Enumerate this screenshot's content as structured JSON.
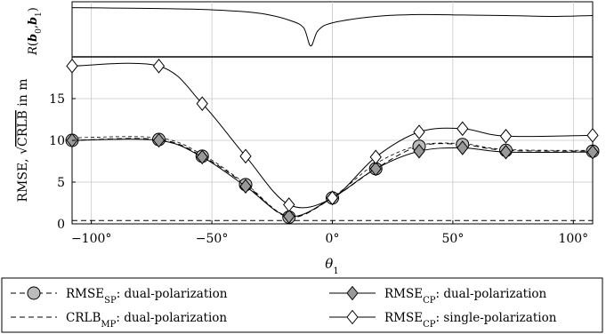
{
  "chart_data": [
    {
      "type": "line",
      "ylabel_math": "R(b0,b1)",
      "ylabel_parts": {
        "R": "R",
        "b0": "b",
        "sub0": "0",
        "b1": "b",
        "sub1": "1"
      },
      "xlim": [
        -108,
        108
      ],
      "ylim": [
        0,
        1
      ],
      "grid": true,
      "series": [
        {
          "x": [
            -108,
            -90,
            -72,
            -54,
            -36,
            -27,
            -18,
            -12,
            -9,
            -6,
            0,
            18,
            36,
            54,
            72,
            90,
            108
          ],
          "y": [
            0.95,
            0.94,
            0.93,
            0.91,
            0.86,
            0.8,
            0.68,
            0.52,
            0.12,
            0.45,
            0.62,
            0.76,
            0.8,
            0.79,
            0.78,
            0.76,
            0.78
          ],
          "color": "#000000"
        }
      ]
    },
    {
      "type": "line",
      "xlabel": "θ",
      "xlabel_sub": "1",
      "ylabel_left": "RMSE, ",
      "ylabel_sqrt": "√",
      "ylabel_crlb": "CRLB",
      "ylabel_right": " in m",
      "xlim": [
        -108,
        108
      ],
      "ylim": [
        0,
        20
      ],
      "xticks": [
        -100,
        -50,
        0,
        50,
        100
      ],
      "xtick_labels": [
        "−100°",
        "−50°",
        "0°",
        "50°",
        "100°"
      ],
      "yticks": [
        0,
        5,
        10,
        15
      ],
      "ytick_labels": [
        "0",
        "5",
        "10",
        "15"
      ],
      "grid": true,
      "legend_position": "bottom",
      "series": [
        {
          "name": "RMSE",
          "name_sub": "SP",
          "name_suffix": ": dual-polarization",
          "marker": "circle",
          "line": "dashed",
          "x": [
            -108,
            -72,
            -54,
            -36,
            -18,
            0,
            18,
            36,
            54,
            72,
            108
          ],
          "y": [
            10.0,
            10.1,
            8.1,
            4.7,
            0.8,
            3.1,
            6.6,
            9.3,
            9.5,
            8.8,
            8.7
          ]
        },
        {
          "name": "RMSE",
          "name_sub": "CP",
          "name_suffix": ": dual-polarization",
          "marker": "diamond",
          "line": "solid",
          "x": [
            -108,
            -72,
            -54,
            -36,
            -18,
            0,
            18,
            36,
            54,
            72,
            108
          ],
          "y": [
            10.0,
            10.0,
            8.0,
            4.5,
            0.9,
            3.1,
            6.6,
            8.7,
            9.1,
            8.6,
            8.6
          ]
        },
        {
          "name": "CRLB",
          "name_sub": "MP",
          "name_suffix": ": dual-polarization",
          "marker": "none",
          "line": "dashed",
          "x": [
            -108,
            108
          ],
          "y": [
            0.4,
            0.4
          ]
        },
        {
          "name": "RMSE",
          "name_sub": "CP",
          "name_suffix": ": single-polarization",
          "marker": "diamond-open",
          "line": "solid",
          "x": [
            -108,
            -72,
            -54,
            -36,
            -18,
            0,
            18,
            36,
            54,
            72,
            108
          ],
          "y": [
            18.9,
            18.9,
            14.4,
            8.1,
            2.3,
            3.1,
            8.0,
            11.0,
            11.4,
            10.5,
            10.6
          ]
        },
        {
          "name": "",
          "marker": "none",
          "line": "dashed-fine",
          "x": [
            -108,
            -72,
            -54,
            -36,
            -18,
            0,
            18,
            36,
            54,
            72,
            108
          ],
          "y": [
            10.3,
            10.3,
            8.3,
            4.8,
            0.9,
            3.2,
            7.2,
            9.4,
            9.6,
            8.9,
            8.8
          ]
        }
      ]
    }
  ]
}
